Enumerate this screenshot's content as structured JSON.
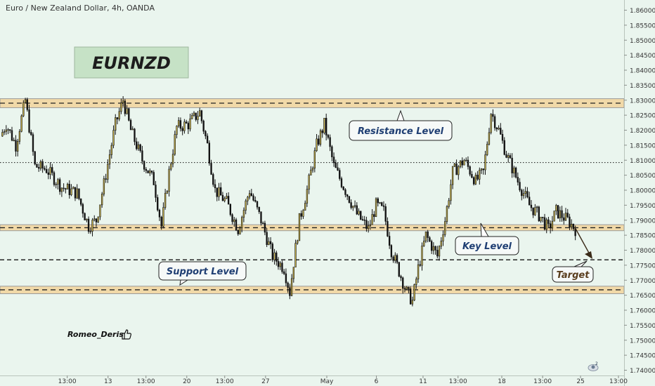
{
  "header": {
    "title": "Euro / New Zealand Dollar, 4h, OANDA"
  },
  "author": {
    "name": "Romeo_Deris"
  },
  "labels": {
    "symbol": "EURNZD",
    "resistance": "Resistance Level",
    "key": "Key Level",
    "support": "Support Level",
    "target": "Target"
  },
  "icons": {
    "thumb": "thumbs-up-icon",
    "badge": "indicator-badge-icon"
  },
  "colors": {
    "background": "#eaf5ee",
    "bull": "#1b1b1b",
    "bull_body": "#c8b24a",
    "bear": "#141414",
    "zone_fill": "#f1d9a8",
    "zone_border": "#9a9a9a",
    "label_text": "#1f3e73",
    "symbol_bg": "#c6e2c6"
  },
  "chart_data": {
    "type": "candlestick",
    "ylim": [
      1.74,
      1.865
    ],
    "yticks": [
      "1.86000",
      "1.85500",
      "1.85000",
      "1.84500",
      "1.84000",
      "1.83500",
      "1.83000",
      "1.82500",
      "1.82000",
      "1.81500",
      "1.81000",
      "1.80500",
      "1.80000",
      "1.79500",
      "1.79000",
      "1.78500",
      "1.78000",
      "1.77500",
      "1.77000",
      "1.76500",
      "1.76000",
      "1.75500",
      "1.75000",
      "1.74500",
      "1.74000"
    ],
    "xticks": [
      {
        "label": "13:00",
        "t": 0.055
      },
      {
        "label": "13",
        "t": 0.125
      },
      {
        "label": "13:00",
        "t": 0.19
      },
      {
        "label": "20",
        "t": 0.26
      },
      {
        "label": "13:00",
        "t": 0.325
      },
      {
        "label": "27",
        "t": 0.395
      },
      {
        "label": "May",
        "t": 0.5
      },
      {
        "label": "6",
        "t": 0.585
      },
      {
        "label": "11",
        "t": 0.665
      },
      {
        "label": "13:00",
        "t": 0.725
      },
      {
        "label": "18",
        "t": 0.8
      },
      {
        "label": "13:00",
        "t": 0.87
      },
      {
        "label": "25",
        "t": 0.935
      },
      {
        "label": "13:00",
        "t": 1.0
      }
    ],
    "zones": [
      {
        "name": "resistance",
        "low": 1.8275,
        "high": 1.8305,
        "line": 1.829
      },
      {
        "name": "key",
        "low": 1.7865,
        "high": 1.7885,
        "line": 1.7875
      },
      {
        "name": "support",
        "low": 1.7655,
        "high": 1.768,
        "line": 1.7668
      }
    ],
    "lines": [
      {
        "value": 1.8092,
        "style": "dotted"
      },
      {
        "value": 1.7768,
        "style": "dashed"
      }
    ],
    "path": [
      [
        0,
        1.818
      ],
      [
        3,
        1.822
      ],
      [
        8,
        1.815
      ],
      [
        13,
        1.83
      ],
      [
        18,
        1.808
      ],
      [
        24,
        1.807
      ],
      [
        32,
        1.801
      ],
      [
        40,
        1.799
      ],
      [
        46,
        1.788
      ],
      [
        50,
        1.79
      ],
      [
        54,
        1.802
      ],
      [
        60,
        1.822
      ],
      [
        64,
        1.83
      ],
      [
        68,
        1.82
      ],
      [
        74,
        1.81
      ],
      [
        80,
        1.803
      ],
      [
        84,
        1.788
      ],
      [
        88,
        1.806
      ],
      [
        92,
        1.821
      ],
      [
        98,
        1.822
      ],
      [
        104,
        1.826
      ],
      [
        108,
        1.815
      ],
      [
        112,
        1.8
      ],
      [
        118,
        1.796
      ],
      [
        124,
        1.787
      ],
      [
        130,
        1.8
      ],
      [
        136,
        1.79
      ],
      [
        142,
        1.778
      ],
      [
        148,
        1.774
      ],
      [
        151,
        1.766
      ],
      [
        153,
        1.776
      ],
      [
        156,
        1.79
      ],
      [
        160,
        1.8
      ],
      [
        165,
        1.815
      ],
      [
        169,
        1.822
      ],
      [
        174,
        1.808
      ],
      [
        180,
        1.8
      ],
      [
        186,
        1.792
      ],
      [
        192,
        1.787
      ],
      [
        196,
        1.795
      ],
      [
        200,
        1.793
      ],
      [
        204,
        1.78
      ],
      [
        208,
        1.773
      ],
      [
        212,
        1.766
      ],
      [
        215,
        1.763
      ],
      [
        218,
        1.774
      ],
      [
        222,
        1.785
      ],
      [
        228,
        1.778
      ],
      [
        232,
        1.79
      ],
      [
        236,
        1.806
      ],
      [
        242,
        1.81
      ],
      [
        248,
        1.803
      ],
      [
        252,
        1.806
      ],
      [
        256,
        1.826
      ],
      [
        260,
        1.82
      ],
      [
        264,
        1.812
      ],
      [
        270,
        1.803
      ],
      [
        276,
        1.795
      ],
      [
        282,
        1.791
      ],
      [
        286,
        1.787
      ],
      [
        290,
        1.793
      ],
      [
        296,
        1.79
      ],
      [
        300,
        1.787
      ]
    ]
  }
}
